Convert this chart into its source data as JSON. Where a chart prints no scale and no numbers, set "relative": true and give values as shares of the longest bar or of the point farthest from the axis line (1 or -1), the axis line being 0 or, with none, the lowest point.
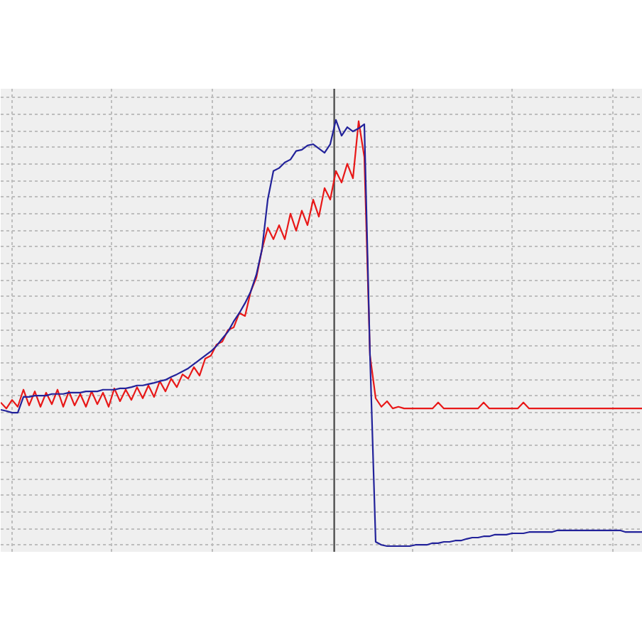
{
  "chart_data": {
    "type": "line",
    "relative": true,
    "grid": true,
    "categories": [
      null,
      null,
      null,
      null,
      null,
      null,
      null,
      null,
      null,
      null,
      null,
      null,
      null,
      null,
      null,
      null,
      null,
      null,
      null,
      null,
      null,
      null,
      null,
      null,
      null,
      null,
      null,
      null,
      null,
      null,
      null,
      null,
      null,
      null,
      null,
      null,
      null,
      null,
      null,
      null,
      null,
      null,
      null,
      null,
      null,
      null,
      null,
      null,
      null,
      null,
      null,
      null,
      null,
      null,
      null,
      null,
      null,
      null,
      null,
      null,
      null,
      null,
      null,
      null,
      null,
      null,
      null,
      null,
      null,
      null,
      null,
      null,
      null,
      null,
      null,
      null,
      null,
      null,
      null,
      null,
      null,
      null,
      null,
      null,
      null,
      null,
      null,
      null,
      null,
      null,
      null,
      null,
      null,
      null,
      null,
      null,
      null,
      null,
      null,
      null,
      null,
      null,
      null,
      null,
      null,
      null,
      null,
      null,
      null,
      null,
      null,
      null,
      null,
      null
    ],
    "series": [
      {
        "color": "#e81818",
        "values": [
          0.337,
          0.323,
          0.343,
          0.327,
          0.367,
          0.33,
          0.363,
          0.327,
          0.36,
          0.333,
          0.367,
          0.327,
          0.363,
          0.33,
          0.357,
          0.327,
          0.363,
          0.333,
          0.36,
          0.327,
          0.37,
          0.34,
          0.367,
          0.343,
          0.373,
          0.347,
          0.377,
          0.35,
          0.387,
          0.363,
          0.393,
          0.373,
          0.403,
          0.393,
          0.42,
          0.4,
          0.44,
          0.447,
          0.473,
          0.48,
          0.507,
          0.513,
          0.547,
          0.54,
          0.597,
          0.63,
          0.697,
          0.747,
          0.72,
          0.753,
          0.72,
          0.78,
          0.74,
          0.787,
          0.753,
          0.813,
          0.773,
          0.84,
          0.813,
          0.88,
          0.853,
          0.897,
          0.863,
          0.997,
          0.913,
          0.447,
          0.347,
          0.327,
          0.34,
          0.323,
          0.327,
          0.323,
          0.323,
          0.323,
          0.323,
          0.323,
          0.323,
          0.337,
          0.323,
          0.323,
          0.323,
          0.323,
          0.323,
          0.323,
          0.323,
          0.337,
          0.323,
          0.323,
          0.323,
          0.323,
          0.323,
          0.323,
          0.337,
          0.323,
          0.323,
          0.323,
          0.323,
          0.323,
          0.323,
          0.323,
          0.323,
          0.323,
          0.323,
          0.323,
          0.323,
          0.323,
          0.323,
          0.323,
          0.323,
          0.323,
          0.323,
          0.323,
          0.323,
          0.323
        ]
      },
      {
        "color": "#22229a",
        "values": [
          0.32,
          0.317,
          0.313,
          0.313,
          0.35,
          0.35,
          0.353,
          0.353,
          0.353,
          0.357,
          0.357,
          0.357,
          0.36,
          0.36,
          0.36,
          0.363,
          0.363,
          0.363,
          0.367,
          0.367,
          0.367,
          0.37,
          0.37,
          0.373,
          0.377,
          0.377,
          0.38,
          0.383,
          0.387,
          0.39,
          0.397,
          0.403,
          0.41,
          0.417,
          0.427,
          0.437,
          0.447,
          0.457,
          0.47,
          0.487,
          0.503,
          0.527,
          0.547,
          0.57,
          0.597,
          0.637,
          0.697,
          0.813,
          0.88,
          0.887,
          0.9,
          0.907,
          0.927,
          0.93,
          0.94,
          0.943,
          0.933,
          0.923,
          0.943,
          1.0,
          0.963,
          0.983,
          0.973,
          0.98,
          0.99,
          0.447,
          0.01,
          0.003,
          0,
          0,
          0,
          0,
          0,
          0.003,
          0.003,
          0.003,
          0.007,
          0.007,
          0.01,
          0.01,
          0.013,
          0.013,
          0.017,
          0.02,
          0.02,
          0.023,
          0.023,
          0.027,
          0.027,
          0.027,
          0.03,
          0.03,
          0.03,
          0.033,
          0.033,
          0.033,
          0.033,
          0.033,
          0.037,
          0.037,
          0.037,
          0.037,
          0.037,
          0.037,
          0.037,
          0.037,
          0.037,
          0.037,
          0.037,
          0.037,
          0.033,
          0.033,
          0.033,
          0.033
        ]
      }
    ]
  }
}
